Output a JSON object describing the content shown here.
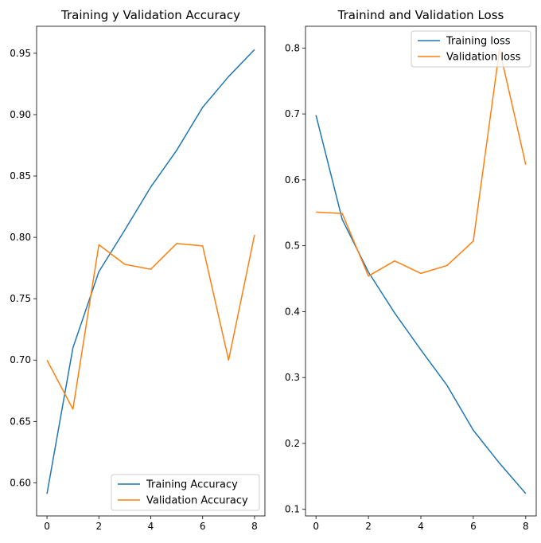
{
  "chart_data": [
    {
      "type": "line",
      "title": "Training y Validation Accuracy",
      "xlabel": "",
      "ylabel": "",
      "x": [
        0,
        1,
        2,
        3,
        4,
        5,
        6,
        7,
        8
      ],
      "xlim": [
        -0.4,
        8.4
      ],
      "ylim": [
        0.573,
        0.972
      ],
      "xticks": [
        0,
        2,
        4,
        6,
        8
      ],
      "yticks": [
        0.6,
        0.65,
        0.7,
        0.75,
        0.8,
        0.85,
        0.9,
        0.95
      ],
      "ytick_labels": [
        "0.60",
        "0.65",
        "0.70",
        "0.75",
        "0.80",
        "0.85",
        "0.90",
        "0.95"
      ],
      "grid": false,
      "legend_position": "bottom-right",
      "series": [
        {
          "name": "Training Accuracy",
          "color": "#1f77b4",
          "values": [
            0.591,
            0.71,
            0.772,
            0.806,
            0.841,
            0.871,
            0.906,
            0.931,
            0.953
          ]
        },
        {
          "name": "Validation Accuracy",
          "color": "#ff7f0e",
          "values": [
            0.7,
            0.66,
            0.794,
            0.778,
            0.774,
            0.795,
            0.793,
            0.7,
            0.802
          ]
        }
      ]
    },
    {
      "type": "line",
      "title": "Trainind and Validation Loss",
      "xlabel": "",
      "ylabel": "",
      "x": [
        0,
        1,
        2,
        3,
        4,
        5,
        6,
        7,
        8
      ],
      "xlim": [
        -0.4,
        8.4
      ],
      "ylim": [
        0.09,
        0.833
      ],
      "xticks": [
        0,
        2,
        4,
        6,
        8
      ],
      "yticks": [
        0.1,
        0.2,
        0.3,
        0.4,
        0.5,
        0.6,
        0.7,
        0.8
      ],
      "ytick_labels": [
        "0.1",
        "0.2",
        "0.3",
        "0.4",
        "0.5",
        "0.6",
        "0.7",
        "0.8"
      ],
      "grid": false,
      "legend_position": "top-right",
      "series": [
        {
          "name": "Training loss",
          "color": "#1f77b4",
          "values": [
            0.698,
            0.54,
            0.46,
            0.398,
            0.342,
            0.288,
            0.22,
            0.17,
            0.124
          ]
        },
        {
          "name": "Validation loss",
          "color": "#ff7f0e",
          "values": [
            0.551,
            0.549,
            0.454,
            0.477,
            0.458,
            0.47,
            0.507,
            0.798,
            0.623
          ]
        }
      ]
    }
  ]
}
